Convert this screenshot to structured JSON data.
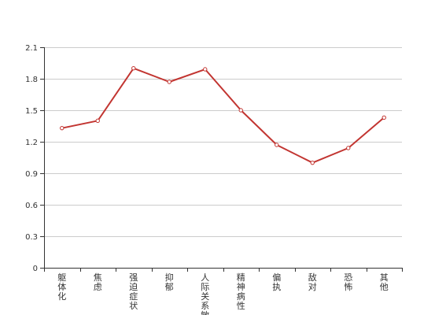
{
  "chart_data": {
    "type": "line",
    "categories": [
      "躯体化",
      "焦虑",
      "强迫症状",
      "抑郁",
      "人际关系敏感",
      "精神病性",
      "偏执",
      "敌对",
      "恐怖",
      "其他"
    ],
    "series": [
      {
        "values": [
          1.33,
          1.4,
          1.9,
          1.77,
          1.89,
          1.5,
          1.17,
          1.0,
          1.14,
          1.43
        ]
      }
    ],
    "ylim": [
      0,
      2.1
    ],
    "yticks": [
      "0",
      "0.3",
      "0.6",
      "0.9",
      "1.2",
      "1.5",
      "1.8",
      "2.1"
    ],
    "grid": true,
    "legend": "none"
  },
  "colors": {
    "line": "#c23531"
  }
}
